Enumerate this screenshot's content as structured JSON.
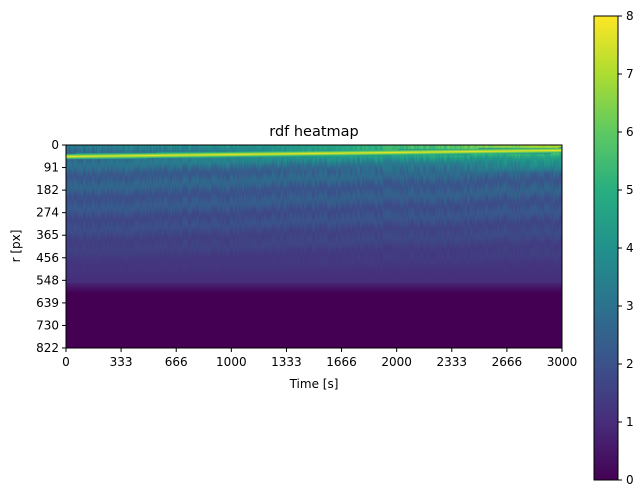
{
  "chart_data": {
    "type": "heatmap",
    "title": "rdf heatmap",
    "xlabel": "Time [s]",
    "ylabel": "r [px]",
    "x_ticks": [
      "0",
      "333",
      "666",
      "1000",
      "1333",
      "1666",
      "2000",
      "2333",
      "2666",
      "3000"
    ],
    "y_ticks": [
      "0",
      "91",
      "182",
      "274",
      "365",
      "456",
      "548",
      "639",
      "730",
      "822"
    ],
    "xlim": [
      0,
      3000
    ],
    "ylim": [
      0,
      822
    ],
    "colormap": "viridis",
    "colorbar": {
      "range": [
        0,
        8
      ],
      "ticks": [
        "0",
        "1",
        "2",
        "3",
        "4",
        "5",
        "6",
        "7",
        "8"
      ]
    },
    "pattern_summary": {
      "bright_band_r": [
        20,
        80
      ],
      "bright_band_value": 8,
      "mid_region_r": [
        90,
        560
      ],
      "mid_region_value_range": [
        1,
        3
      ],
      "low_region_r": [
        600,
        822
      ],
      "low_region_value": 0
    },
    "colors": {
      "low": "#440154",
      "mid": "#21918c",
      "high": "#fde725"
    }
  }
}
